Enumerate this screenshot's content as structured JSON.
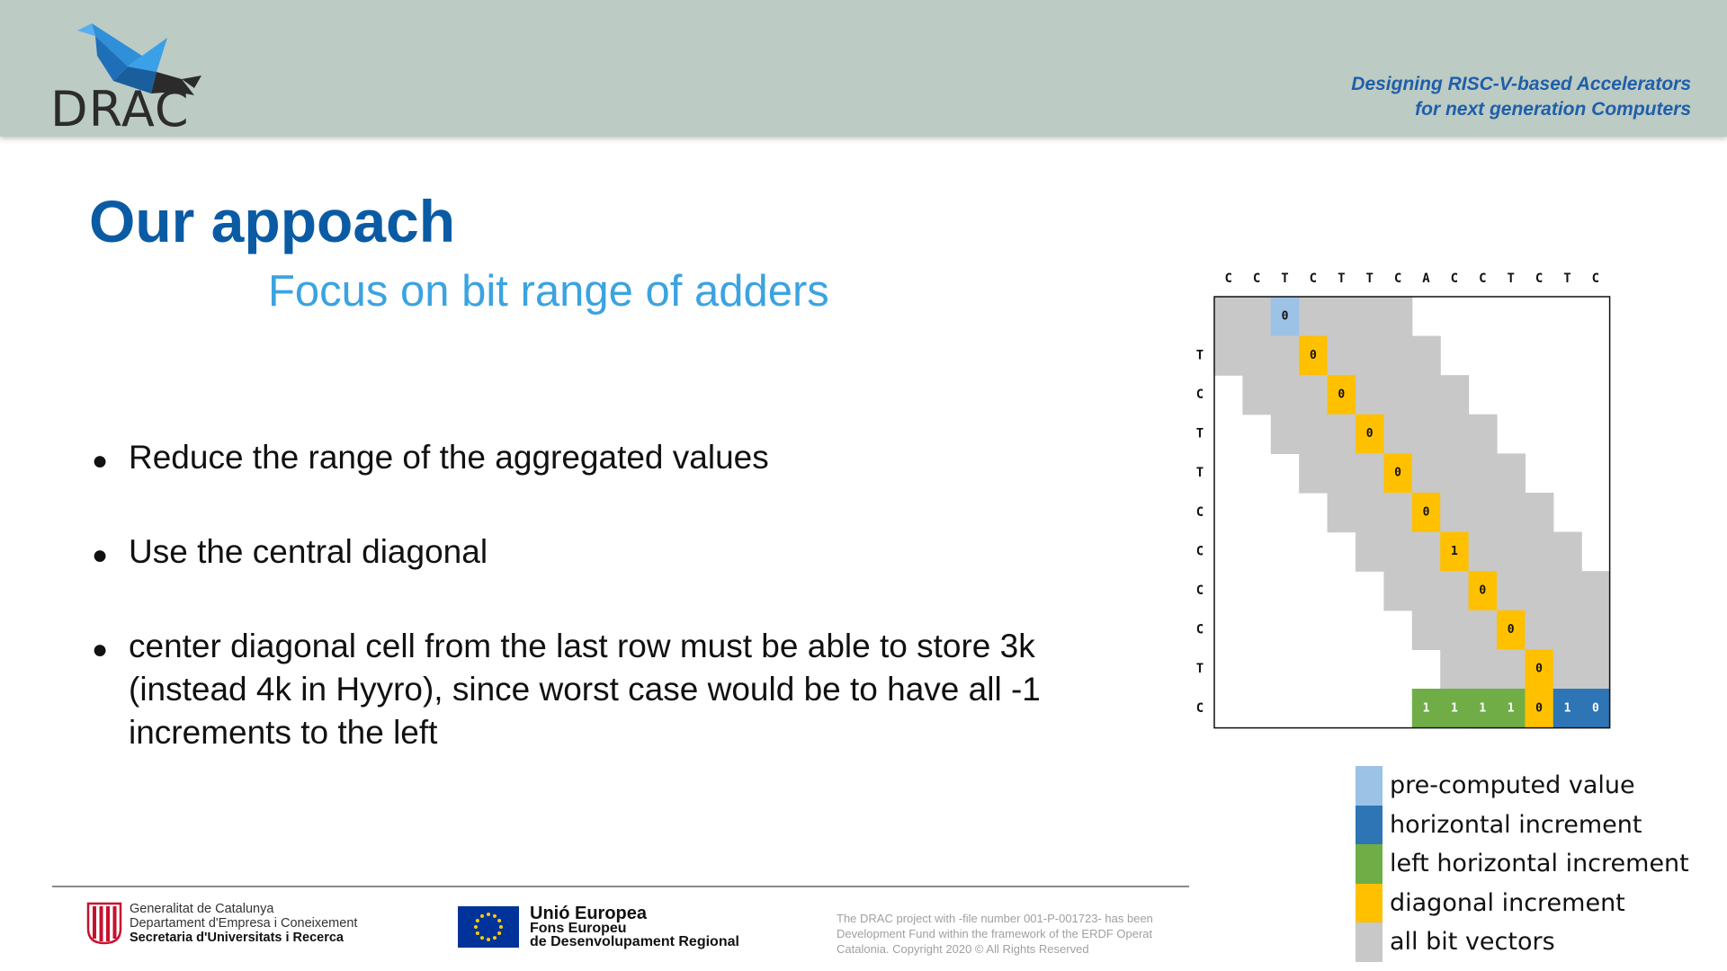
{
  "header": {
    "logo_text": "DRAC",
    "tagline_line1": "Designing RISC-V-based Accelerators",
    "tagline_line2": "for next generation Computers"
  },
  "slide": {
    "title": "Our appoach",
    "subtitle": "Focus on bit range of adders",
    "bullets": [
      "Reduce the range of the aggregated values",
      "Use the central diagonal",
      "center diagonal cell from the last row must be able to store 3k (instead 4k in Hyyro), since worst case would be to have all -1 increments to the left"
    ]
  },
  "matrix": {
    "column_labels": [
      "C",
      "C",
      "T",
      "C",
      "T",
      "T",
      "C",
      "A",
      "C",
      "C",
      "T",
      "C",
      "T",
      "C"
    ],
    "row_labels": [
      "",
      "T",
      "C",
      "T",
      "T",
      "C",
      "C",
      "C",
      "C",
      "T",
      "C"
    ],
    "diagonal_values": [
      "0",
      "0",
      "0",
      "0",
      "0",
      "0",
      "1",
      "0",
      "0",
      "0"
    ],
    "last_row_values": [
      "1",
      "1",
      "1",
      "1",
      "0",
      "1",
      "0"
    ],
    "colors": {
      "pre_computed": "#9cc3e6",
      "horizontal": "#2e75b6",
      "left_horizontal": "#70ad47",
      "diagonal": "#ffc000",
      "all_bits": "#c8c8c8"
    }
  },
  "legend": [
    {
      "label": "pre-computed value",
      "color": "#9cc3e6"
    },
    {
      "label": "horizontal increment",
      "color": "#2e75b6"
    },
    {
      "label": "left horizontal increment",
      "color": "#70ad47"
    },
    {
      "label": "diagonal increment",
      "color": "#ffc000"
    },
    {
      "label": "all bit vectors",
      "color": "#c8c8c8"
    }
  ],
  "footer": {
    "gen_line1": "Generalitat de Catalunya",
    "gen_line2": "Departament d'Empresa i Coneixement",
    "gen_line3": "Secretaria d'Universitats i Recerca",
    "eu_line1": "Unió Europea",
    "eu_line2": "Fons Europeu",
    "eu_line3": "de Desenvolupament Regional",
    "copyright_line1": "The DRAC project with -file number 001-P-001723- has been",
    "copyright_line2": "Development Fund within the framework of the ERDF Operat",
    "copyright_line3": "Catalonia. Copyright 2020 © All Rights Reserved"
  }
}
